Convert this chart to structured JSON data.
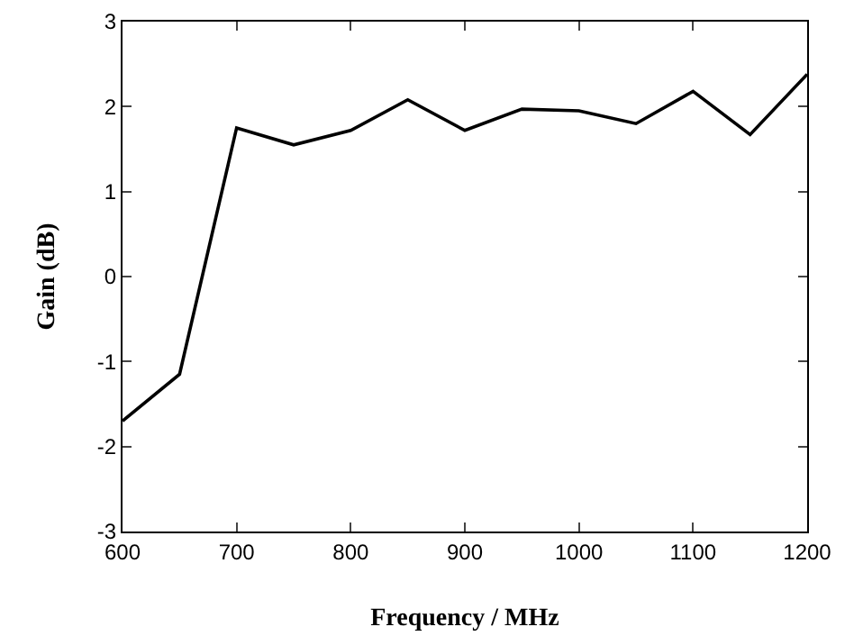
{
  "chart_data": {
    "type": "line",
    "xlabel": "Frequency / MHz",
    "ylabel": "Gain (dB)",
    "x": [
      600,
      650,
      700,
      750,
      800,
      850,
      900,
      950,
      1000,
      1050,
      1100,
      1150,
      1200
    ],
    "series": [
      {
        "color": "#000000",
        "values": [
          -1.7,
          -1.15,
          1.75,
          1.55,
          1.72,
          2.08,
          1.72,
          1.97,
          1.95,
          1.8,
          2.18,
          1.67,
          2.38
        ]
      }
    ],
    "xlim": [
      600,
      1200
    ],
    "ylim": [
      -3,
      3
    ],
    "xticks": [
      600,
      700,
      800,
      900,
      1000,
      1100,
      1200
    ],
    "yticks": [
      -3,
      -2,
      -1,
      0,
      1,
      2,
      3
    ],
    "grid": false,
    "marker": "none",
    "line_style": "solid"
  }
}
